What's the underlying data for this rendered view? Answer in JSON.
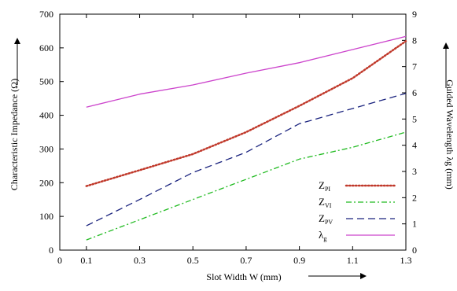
{
  "chart_data": {
    "type": "line",
    "x": [
      0.1,
      0.3,
      0.5,
      0.7,
      0.9,
      1.1,
      1.3
    ],
    "xlabel": "Slot Width W (mm)",
    "ylabel_left": "Characteristic Impedance (Ω)",
    "ylabel_right": "Guided Wavelength λg (mm)",
    "xlim": [
      0,
      1.3
    ],
    "xticks": [
      "0",
      "0.1",
      "0.3",
      "0.5",
      "0.7",
      "0.9",
      "1.1",
      "1.3"
    ],
    "ylim_left": [
      0,
      700
    ],
    "yticks_left": [
      "0",
      "100",
      "200",
      "300",
      "400",
      "500",
      "600",
      "700"
    ],
    "ylim_right": [
      0,
      9
    ],
    "yticks_right": [
      "0",
      "1",
      "2",
      "3",
      "4",
      "5",
      "6",
      "7",
      "8",
      "9"
    ],
    "grid": false,
    "legend_position": "bottom-right",
    "series": [
      {
        "name": "ZPI",
        "name_main": "Z",
        "name_sub": "PI",
        "axis": "left",
        "style": "dotted",
        "color": "#c0392b",
        "values": [
          190,
          237,
          285,
          350,
          428,
          510,
          620
        ]
      },
      {
        "name": "ZVI",
        "name_main": "Z",
        "name_sub": "VI",
        "axis": "left",
        "style": "dashdot",
        "color": "#22bb22",
        "values": [
          30,
          90,
          150,
          210,
          270,
          305,
          350
        ]
      },
      {
        "name": "ZPV",
        "name_main": "Z",
        "name_sub": "PV",
        "axis": "left",
        "style": "dashed",
        "color": "#1a237e",
        "values": [
          72,
          150,
          230,
          290,
          375,
          420,
          465
        ]
      },
      {
        "name": "λg",
        "name_main": "λ",
        "name_sub": "g",
        "axis": "right",
        "style": "solid",
        "color": "#cc44cc",
        "values": [
          5.45,
          5.95,
          6.3,
          6.75,
          7.15,
          7.65,
          8.15
        ]
      }
    ]
  }
}
